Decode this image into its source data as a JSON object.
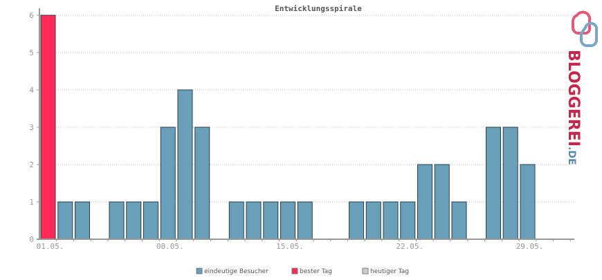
{
  "chart_data": {
    "type": "bar",
    "title": "Entwicklungsspirale",
    "xlabel": "",
    "ylabel": "",
    "ylim": [
      0,
      6
    ],
    "yticks": [
      0,
      1,
      2,
      3,
      4,
      5,
      6
    ],
    "grid": true,
    "legend_position": "bottom",
    "categories": [
      "01.05.",
      "02.05.",
      "03.05.",
      "04.05.",
      "05.05.",
      "06.05.",
      "07.05.",
      "08.05.",
      "09.05.",
      "10.05.",
      "11.05.",
      "12.05.",
      "13.05.",
      "14.05.",
      "15.05.",
      "16.05.",
      "17.05.",
      "18.05.",
      "19.05.",
      "20.05.",
      "21.05.",
      "22.05.",
      "23.05.",
      "24.05.",
      "25.05.",
      "26.05.",
      "27.05.",
      "28.05.",
      "29.05.",
      "30.05.",
      "31.05."
    ],
    "x_tick_labels": [
      {
        "label": "01.05.",
        "index": 0
      },
      {
        "label": "08.05.",
        "index": 7
      },
      {
        "label": "15.05.",
        "index": 14
      },
      {
        "label": "22.05.",
        "index": 21
      },
      {
        "label": "29.05.",
        "index": 28
      }
    ],
    "values": [
      6,
      1,
      1,
      0,
      1,
      1,
      1,
      3,
      4,
      3,
      0,
      1,
      1,
      1,
      1,
      1,
      0,
      0,
      1,
      1,
      1,
      1,
      2,
      2,
      1,
      0,
      3,
      3,
      2,
      0,
      0
    ],
    "best_day_index": 0,
    "colors": {
      "visitors": "#6a9fba",
      "best_day": "#ff2a55",
      "today": "#cccccc",
      "bar_border": "#2a3f4a",
      "grid": "#bbbbbb",
      "axis": "#999999"
    },
    "legend": [
      {
        "label": "eindeutige Besucher",
        "color": "#6a9fba"
      },
      {
        "label": "bester Tag",
        "color": "#ff2a55"
      },
      {
        "label": "heutiger Tag",
        "color": "#cccccc"
      }
    ]
  },
  "logo": {
    "text_main": "BLOGGEREI",
    "text_suffix": ".DE",
    "color_main": "#c8254a",
    "color_suffix": "#5a8aaa"
  }
}
